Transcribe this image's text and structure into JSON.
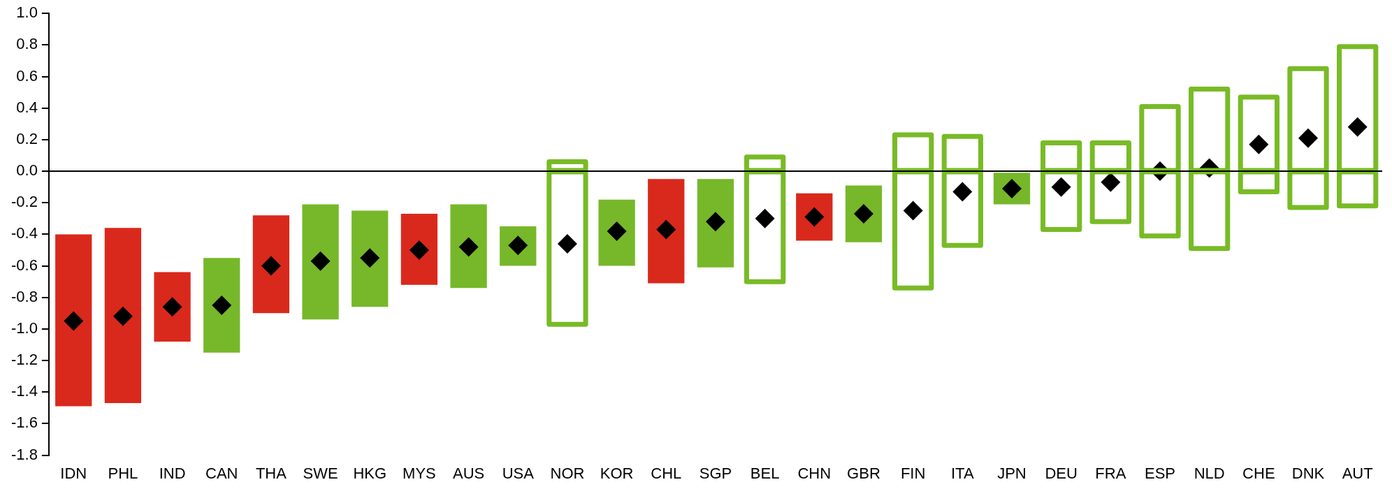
{
  "chart_data": {
    "type": "bar",
    "categories": [
      "IDN",
      "PHL",
      "IND",
      "CAN",
      "THA",
      "SWE",
      "HKG",
      "MYS",
      "AUS",
      "USA",
      "NOR",
      "KOR",
      "CHL",
      "SGP",
      "BEL",
      "CHN",
      "GBR",
      "FIN",
      "ITA",
      "JPN",
      "DEU",
      "FRA",
      "ESP",
      "NLD",
      "CHE",
      "DNK",
      "AUT"
    ],
    "series": [
      {
        "color": "#d9291c",
        "values": [
          1.09,
          1.11,
          0.44,
          null,
          0.62,
          null,
          null,
          0.45,
          null,
          null,
          null,
          null,
          0.66,
          null,
          null,
          0.3,
          null,
          null,
          null,
          null,
          null,
          null,
          null,
          null,
          null,
          null,
          null
        ],
        "base": [
          -1.49,
          -1.47,
          -1.08,
          null,
          -0.9,
          null,
          null,
          -0.72,
          null,
          null,
          null,
          null,
          -0.71,
          null,
          null,
          -0.44,
          null,
          null,
          null,
          null,
          null,
          null,
          null,
          null,
          null,
          null,
          null
        ]
      },
      {
        "color": "#76b82a",
        "values": [
          null,
          null,
          null,
          0.6,
          null,
          0.73,
          0.61,
          null,
          0.53,
          0.25,
          null,
          0.42,
          null,
          0.56,
          null,
          null,
          0.36,
          null,
          null,
          0.2,
          null,
          null,
          null,
          null,
          null,
          null,
          null
        ],
        "base": [
          null,
          null,
          null,
          -1.15,
          null,
          -0.94,
          -0.86,
          null,
          -0.74,
          -0.6,
          null,
          -0.6,
          null,
          -0.61,
          null,
          null,
          -0.45,
          null,
          null,
          -0.21,
          null,
          null,
          null,
          null,
          null,
          null,
          null
        ]
      },
      {
        "color": "#78bb26",
        "line_style": "solid",
        "values": [
          null,
          null,
          null,
          null,
          null,
          null,
          null,
          null,
          null,
          null,
          0.06,
          null,
          null,
          null,
          0.09,
          null,
          null,
          0.23,
          0.22,
          null,
          0.18,
          0.18,
          0.41,
          0.52,
          0.47,
          0.65,
          0.79
        ]
      },
      {
        "color": "#78bb26",
        "line_style": "solid",
        "values": [
          null,
          null,
          null,
          null,
          null,
          null,
          null,
          null,
          null,
          null,
          -0.97,
          null,
          null,
          null,
          -0.7,
          null,
          null,
          -0.74,
          -0.47,
          null,
          -0.37,
          -0.32,
          -0.41,
          -0.49,
          -0.13,
          -0.23,
          -0.22
        ]
      },
      {
        "type": "scatter",
        "color": "#000000",
        "marker": "diamond",
        "x": [
          "IDN",
          "PHL",
          "IND",
          "CAN",
          "THA",
          "SWE",
          "HKG",
          "MYS",
          "AUS",
          "USA",
          "NOR",
          "KOR",
          "CHL",
          "SGP",
          "BEL",
          "CHN",
          "GBR",
          "FIN",
          "ITA",
          "JPN",
          "DEU",
          "FRA",
          "ESP",
          "NLD",
          "CHE",
          "DNK",
          "AUT"
        ],
        "values": [
          -0.95,
          -0.92,
          -0.86,
          -0.85,
          -0.6,
          -0.57,
          -0.55,
          -0.5,
          -0.48,
          -0.47,
          -0.46,
          -0.38,
          -0.37,
          -0.32,
          -0.3,
          -0.29,
          -0.27,
          -0.25,
          -0.13,
          -0.11,
          -0.1,
          -0.07,
          0.0,
          0.02,
          0.17,
          0.21,
          0.28
        ]
      }
    ],
    "ylim": [
      -1.8,
      1.0
    ],
    "yticks": [
      {
        "value": 1.0,
        "label": "1.0"
      },
      {
        "value": 0.8,
        "label": "0.8"
      },
      {
        "value": 0.6,
        "label": "0.6"
      },
      {
        "value": 0.4,
        "label": "0.4"
      },
      {
        "value": 0.2,
        "label": "0.2"
      },
      {
        "value": 0,
        "label": "0.0"
      },
      {
        "value": -0.2,
        "label": "-0.2"
      },
      {
        "value": -0.4,
        "label": "-0.4"
      },
      {
        "value": -0.6,
        "label": "-0.6"
      },
      {
        "value": -0.8,
        "label": "-0.8"
      },
      {
        "value": -1.0,
        "label": "-1.0"
      },
      {
        "value": -1.2,
        "label": "-1.2"
      },
      {
        "value": -1.4,
        "label": "-1.4"
      },
      {
        "value": -1.6,
        "label": "-1.6"
      },
      {
        "value": -1.8,
        "label": "-1.8"
      }
    ],
    "ref_lines": [
      {
        "axis": "y",
        "value": 0,
        "color": "#000000"
      }
    ],
    "grid": false,
    "legend": false
  }
}
